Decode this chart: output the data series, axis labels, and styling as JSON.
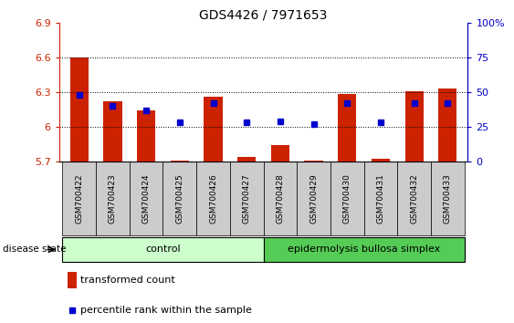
{
  "title": "GDS4426 / 7971653",
  "samples": [
    "GSM700422",
    "GSM700423",
    "GSM700424",
    "GSM700425",
    "GSM700426",
    "GSM700427",
    "GSM700428",
    "GSM700429",
    "GSM700430",
    "GSM700431",
    "GSM700432",
    "GSM700433"
  ],
  "transformed_count": [
    6.6,
    6.22,
    6.14,
    5.705,
    6.26,
    5.74,
    5.84,
    5.71,
    6.28,
    5.72,
    6.31,
    6.33
  ],
  "percentile_rank": [
    48,
    40,
    37,
    28,
    42,
    28,
    29,
    27,
    42,
    28,
    42,
    42
  ],
  "ylim_left": [
    5.7,
    6.9
  ],
  "ylim_right": [
    0,
    100
  ],
  "yticks_left": [
    5.7,
    6.0,
    6.3,
    6.6,
    6.9
  ],
  "yticks_right": [
    0,
    25,
    50,
    75,
    100
  ],
  "ytick_labels_left": [
    "5.7",
    "6",
    "6.3",
    "6.6",
    "6.9"
  ],
  "ytick_labels_right": [
    "0",
    "25",
    "50",
    "75",
    "100%"
  ],
  "hlines": [
    6.0,
    6.3,
    6.6
  ],
  "bar_color": "#cc2200",
  "dot_color": "#0000cc",
  "bar_bottom": 5.7,
  "control_indices": [
    0,
    1,
    2,
    3,
    4,
    5
  ],
  "disease_indices": [
    6,
    7,
    8,
    9,
    10,
    11
  ],
  "control_label": "control",
  "disease_label": "epidermolysis bullosa simplex",
  "disease_state_label": "disease state",
  "legend_bar_label": "transformed count",
  "legend_dot_label": "percentile rank within the sample",
  "control_color": "#ccffcc",
  "disease_color": "#55cc55",
  "xlabel_color": "#cc2200",
  "ylabel_right_color": "#0000cc",
  "bar_width": 0.55,
  "tick_box_color": "#cccccc"
}
